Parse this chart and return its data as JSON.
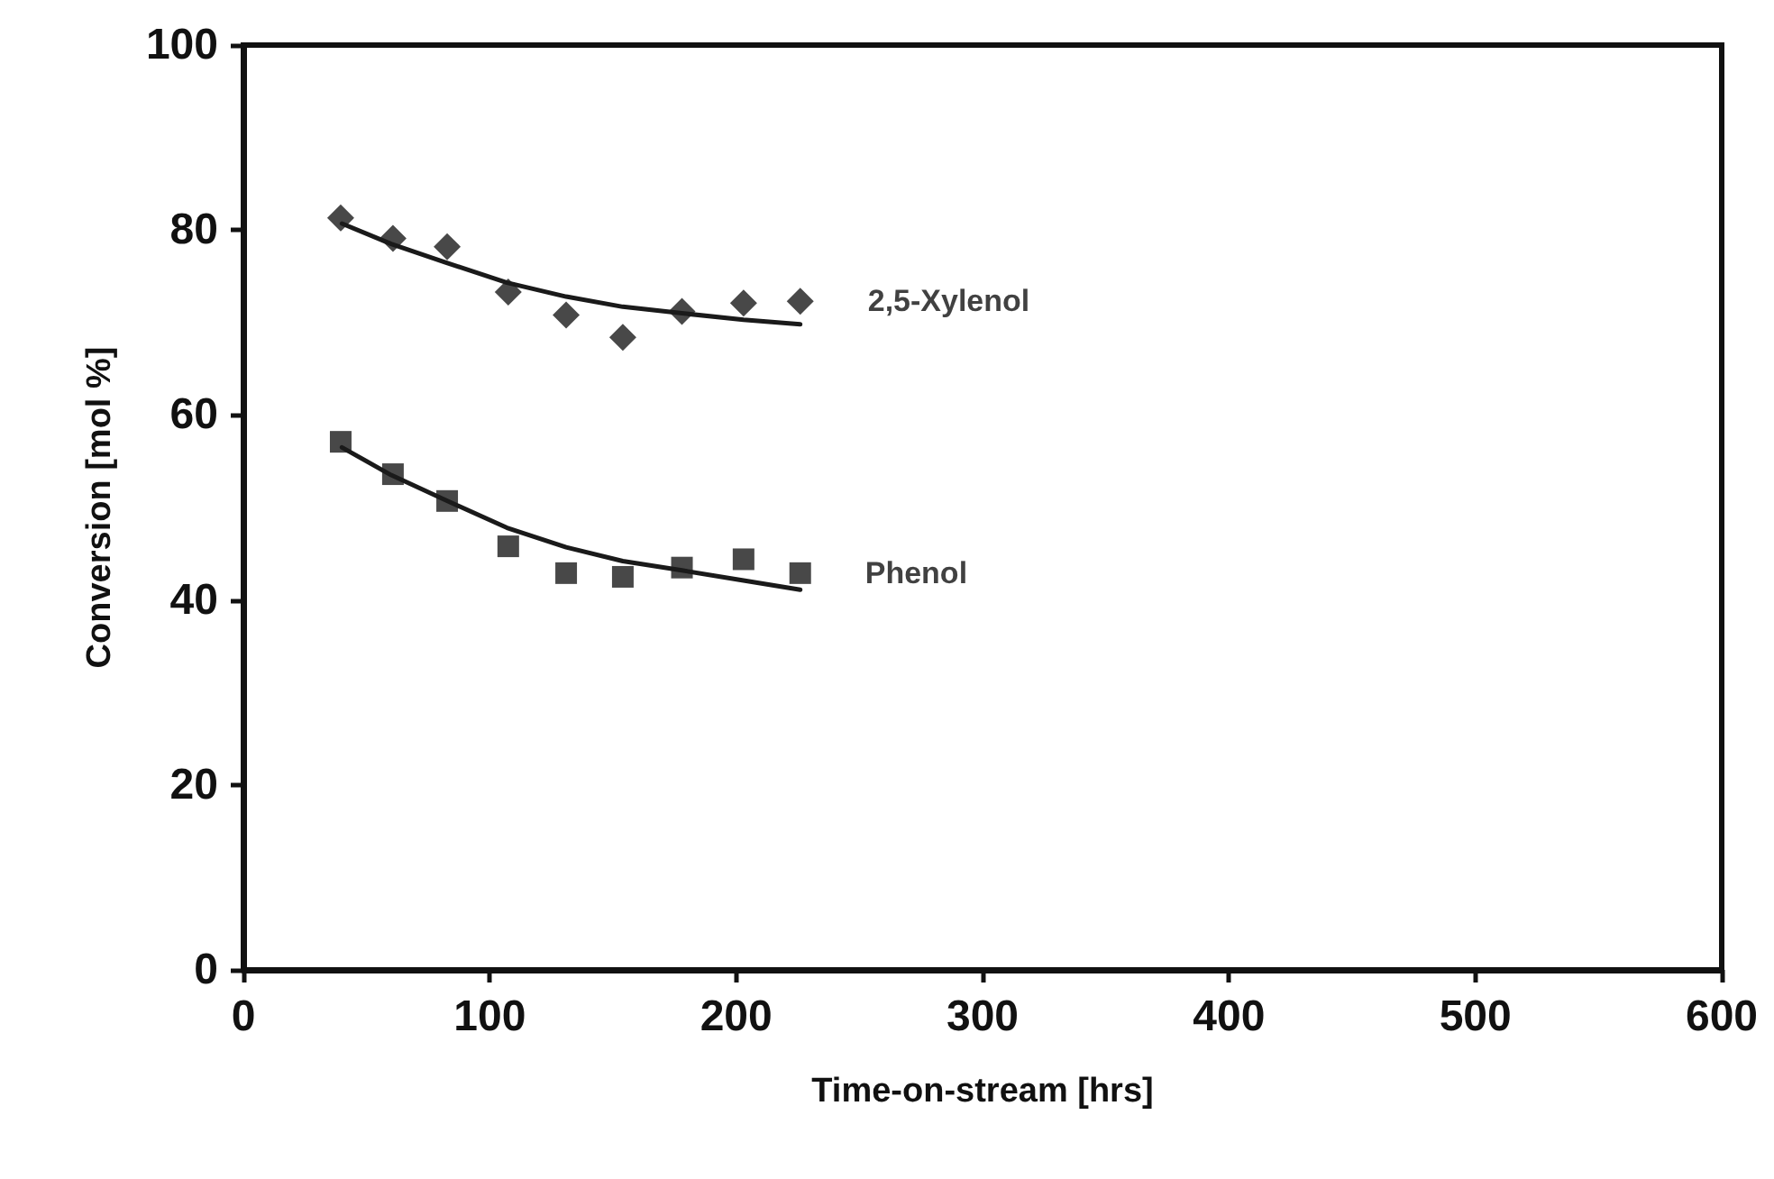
{
  "chart_data": {
    "type": "scatter",
    "xlabel": "Time-on-stream [hrs]",
    "ylabel": "Conversion [mol %]",
    "xlim": [
      0,
      600
    ],
    "xticks": [
      0,
      100,
      200,
      300,
      400,
      500,
      600
    ],
    "ylim": [
      0,
      100
    ],
    "yticks": [
      0,
      20,
      40,
      60,
      80,
      100
    ],
    "grid": false,
    "legend": false,
    "series": [
      {
        "name": "2,5-Xylenol",
        "marker": "diamond",
        "color": "#1a1a1a",
        "x": [
          39.5,
          60.7,
          82.7,
          107.5,
          131,
          154,
          178,
          203,
          226
        ],
        "values": [
          81.3,
          79.1,
          78.2,
          73.3,
          70.8,
          68.4,
          71.2,
          72.1,
          72.3
        ]
      },
      {
        "name": "Phenol",
        "marker": "square",
        "color": "#1a1a1a",
        "x": [
          39.5,
          60.7,
          82.7,
          107.5,
          131,
          154,
          178,
          203,
          226
        ],
        "values": [
          57.1,
          53.6,
          50.7,
          45.8,
          42.9,
          42.5,
          43.5,
          44.4,
          42.9
        ]
      },
      {
        "type": "line",
        "marker": "none",
        "line_style": "solid",
        "color": "#1a1a1a",
        "x": [
          40,
          60,
          82,
          107,
          131,
          154,
          178,
          203,
          226
        ],
        "values": [
          80.7,
          78.5,
          76.5,
          74.3,
          72.8,
          71.7,
          71,
          70.3,
          69.8
        ]
      },
      {
        "type": "line",
        "marker": "none",
        "line_style": "solid",
        "color": "#1a1a1a",
        "x": [
          40,
          60,
          82,
          107,
          131,
          154,
          178,
          203,
          226
        ],
        "values": [
          56.5,
          53.5,
          50.8,
          47.8,
          45.7,
          44.2,
          43.2,
          42.1,
          41.1
        ]
      }
    ]
  }
}
